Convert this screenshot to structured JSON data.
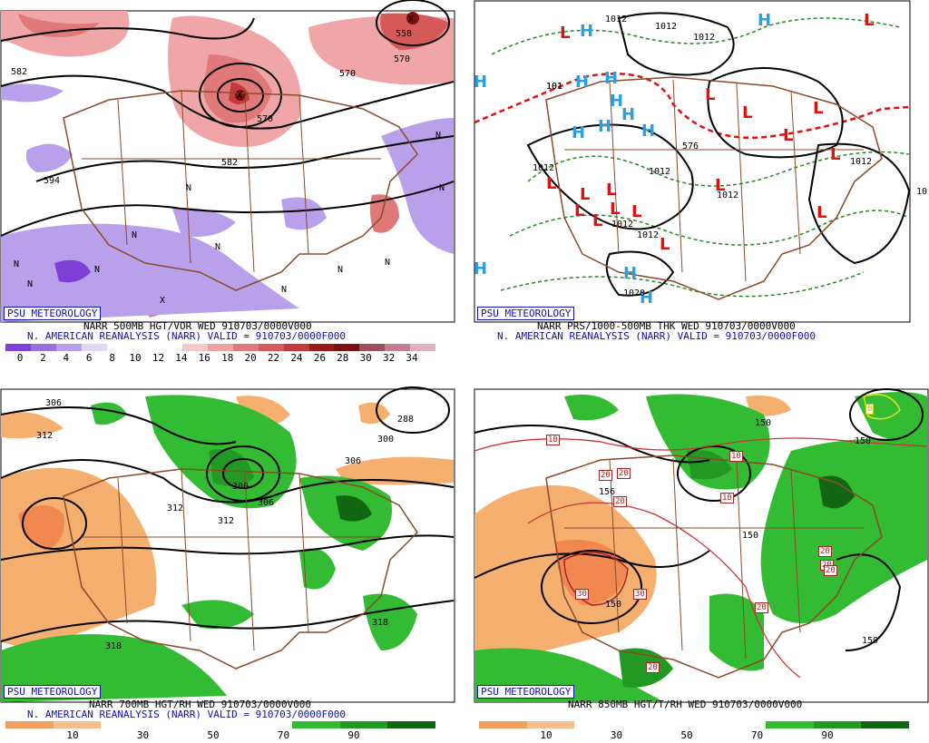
{
  "logo": "PSU METEOROLOGY",
  "panels": {
    "tl": {
      "caption1": "NARR 500MB HGT/VOR WED 910703/0000V000",
      "caption2": "N. AMERICAN REANALYSIS (NARR) VALID = 910703/0000F000",
      "scale_labels": [
        "0",
        "2",
        "4",
        "6",
        "8",
        "10",
        "12",
        "14",
        "16",
        "18",
        "20",
        "22",
        "24",
        "26",
        "28",
        "30",
        "32",
        "34"
      ],
      "scale_colors": [
        "#7d3fd6",
        "#9a6de0",
        "#b9a0ea",
        "#e0d8f3",
        "#ffffff",
        "#ffffff",
        "#ffffff",
        "#f6c8c8",
        "#eea2a2",
        "#e07a7a",
        "#d45a5a",
        "#c23a3a",
        "#9b1b1b",
        "#7a1010",
        "#a0505a",
        "#c08090",
        "#e0b0c0"
      ],
      "contour_labels": [
        "582",
        "594",
        "570",
        "570",
        "582",
        "570",
        "558"
      ],
      "vort_labels": [
        "N",
        "N",
        "N",
        "N",
        "N",
        "N",
        "N",
        "N",
        "N",
        "N",
        "N",
        "X",
        "X",
        "X"
      ]
    },
    "tr": {
      "caption1": "NARR PRS/1000-500MB THK WED 910703/0000V000",
      "caption2": "N. AMERICAN REANALYSIS (NARR) VALID = 910703/0000F000",
      "highs": [
        "H",
        "H",
        "H",
        "H",
        "H",
        "H",
        "H",
        "H",
        "H",
        "H",
        "H",
        "H",
        "H"
      ],
      "lows": [
        "L",
        "L",
        "L",
        "L",
        "L",
        "L",
        "L",
        "L",
        "L",
        "L",
        "L",
        "L",
        "L",
        "L",
        "L",
        "L",
        "L"
      ],
      "isobar_labels": [
        "1012",
        "1012",
        "1012",
        "101",
        "1012",
        "1012",
        "1012",
        "1012",
        "1012",
        "1012",
        "1020",
        "576",
        "101",
        "10"
      ],
      "colors": {
        "high": "#2aa0e0",
        "low": "#e01010",
        "thick_warm": "#e01010",
        "thick": "#228822"
      }
    },
    "bl": {
      "caption1": "NARR 700MB HGT/RH WED 910703/0000V000",
      "caption2": "N. AMERICAN REANALYSIS (NARR) VALID = 910703/0000F000",
      "contour_labels": [
        "306",
        "312",
        "288",
        "300",
        "300",
        "306",
        "306",
        "312",
        "312",
        "318",
        "318"
      ],
      "scale_labels": [
        "10",
        "30",
        "50",
        "70",
        "90"
      ],
      "scale_colors": [
        "#f0a060",
        "#f5c090",
        "#ffffff",
        "#ffffff",
        "#ffffff",
        "#ffffff",
        "#33bb33",
        "#229922",
        "#116611"
      ]
    },
    "br": {
      "caption1": "NARR 850MB HGT/T/RH WED 910703/0000V000",
      "caption2": "",
      "contour_labels": [
        "150",
        "150",
        "156",
        "150",
        "150",
        "150"
      ],
      "temp_labels": [
        "10",
        "10",
        "10",
        "20",
        "20",
        "20",
        "20",
        "20",
        "20",
        "20",
        "20",
        "30",
        "30",
        "0"
      ],
      "scale_labels": [
        "10",
        "30",
        "50",
        "70",
        "90"
      ],
      "scale_colors": [
        "#f0a060",
        "#f5c090",
        "#ffffff",
        "#ffffff",
        "#ffffff",
        "#ffffff",
        "#33bb33",
        "#229922",
        "#116611"
      ]
    }
  }
}
